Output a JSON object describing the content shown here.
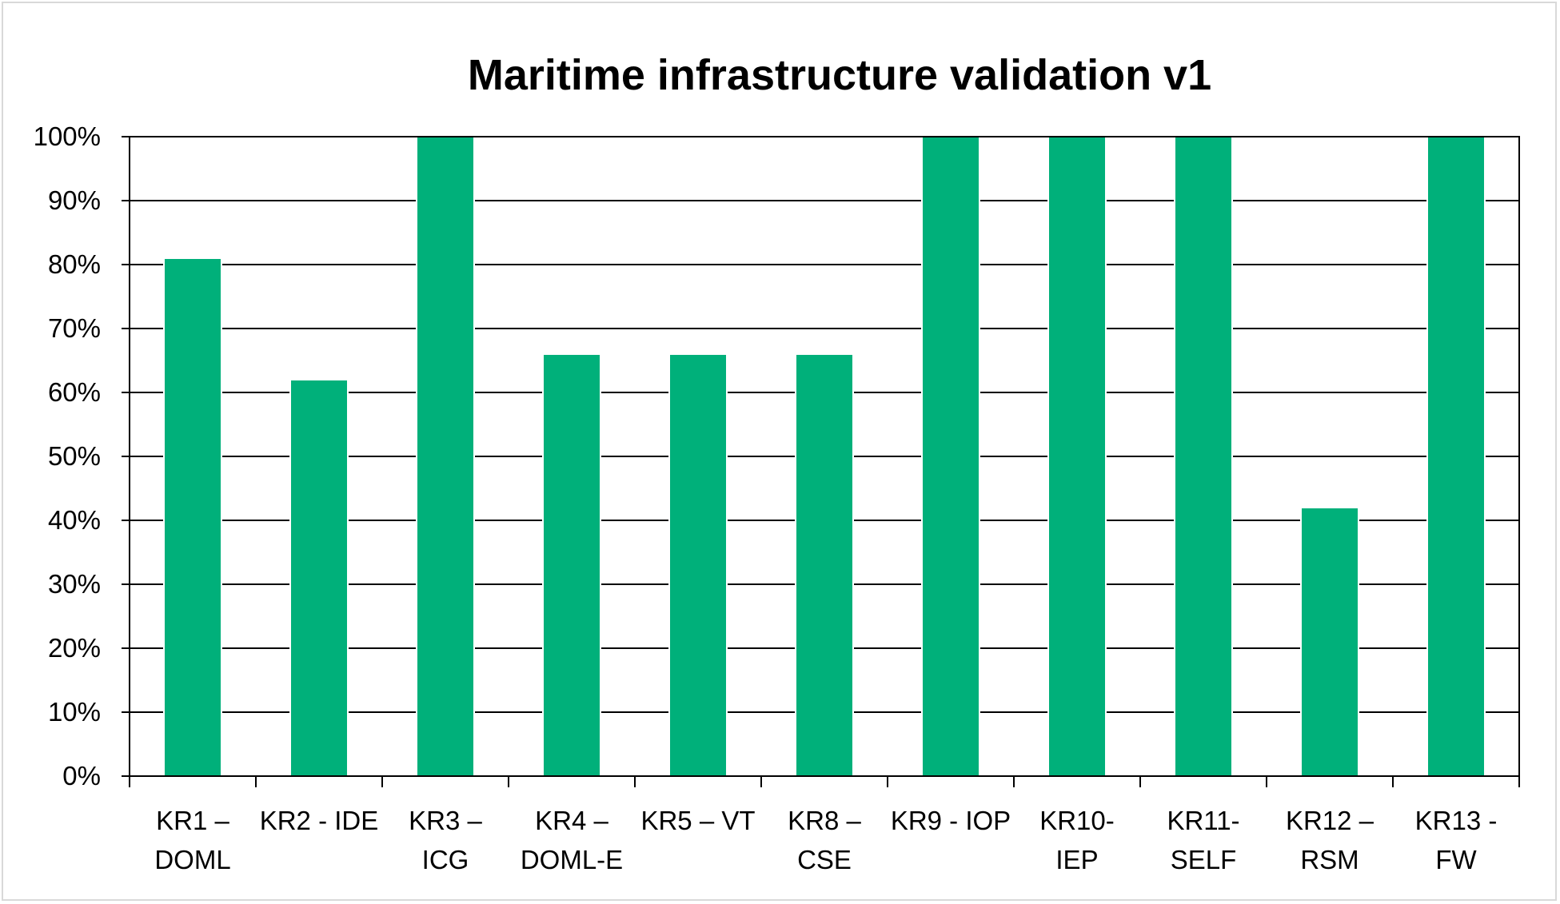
{
  "chart_data": {
    "type": "bar",
    "title": "Maritime infrastructure validation v1",
    "xlabel": "",
    "ylabel": "",
    "ylim": [
      0,
      1
    ],
    "y_ticks": [
      "0%",
      "10%",
      "20%",
      "30%",
      "40%",
      "50%",
      "60%",
      "70%",
      "80%",
      "90%",
      "100%"
    ],
    "grid": true,
    "legend": "none",
    "bar_color": "#00b07a",
    "categories": [
      [
        "KR1 –",
        "DOML"
      ],
      [
        "KR2 - IDE"
      ],
      [
        "KR3 –",
        "ICG"
      ],
      [
        "KR4 –",
        "DOML-E"
      ],
      [
        "KR5 – VT"
      ],
      [
        "KR8 –",
        "CSE"
      ],
      [
        "KR9 - IOP"
      ],
      [
        "KR10-",
        "IEP"
      ],
      [
        "KR11-",
        "SELF"
      ],
      [
        "KR12 –",
        "RSM"
      ],
      [
        "KR13 -",
        "FW"
      ]
    ],
    "values": [
      0.81,
      0.62,
      1.0,
      0.66,
      0.66,
      0.66,
      1.0,
      1.0,
      1.0,
      0.42,
      1.0
    ]
  }
}
